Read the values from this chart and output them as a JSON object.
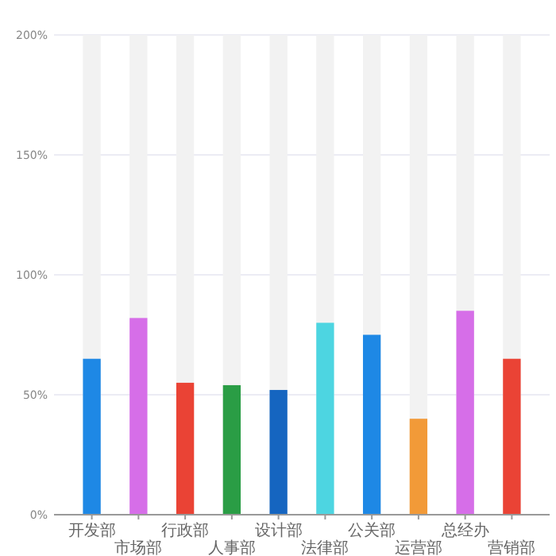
{
  "chart_data": {
    "type": "bar",
    "categories": [
      "开发部",
      "市场部",
      "行政部",
      "人事部",
      "设计部",
      "法律部",
      "公关部",
      "运营部",
      "总经办",
      "营销部"
    ],
    "values": [
      65,
      82,
      55,
      54,
      52,
      80,
      75,
      40,
      85,
      65
    ],
    "colors": [
      "#1e88e5",
      "#d66ee8",
      "#ea4335",
      "#2a9d45",
      "#1565c0",
      "#4dd5e1",
      "#1e88e5",
      "#f29a38",
      "#d66ee8",
      "#ea4335"
    ],
    "ylim": [
      0,
      200
    ],
    "yticks": [
      {
        "value": 0,
        "label": "0%"
      },
      {
        "value": 50,
        "label": "50%"
      },
      {
        "value": 100,
        "label": "100%"
      },
      {
        "value": 150,
        "label": "150%"
      },
      {
        "value": 200,
        "label": "200%"
      }
    ],
    "grid": "y"
  }
}
